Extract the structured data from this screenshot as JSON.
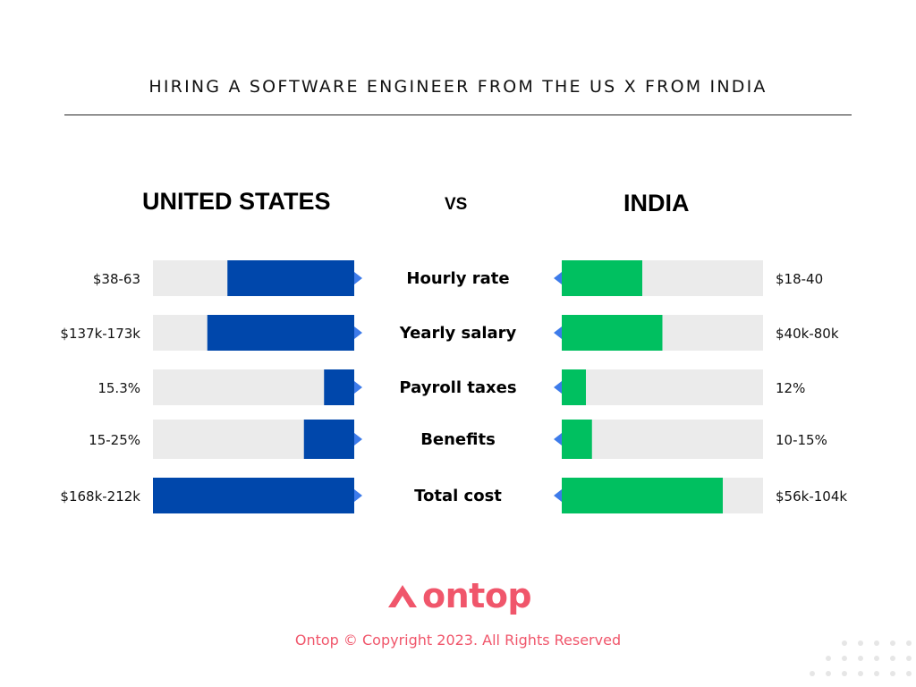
{
  "title": "HIRING A SOFTWARE ENGINEER FROM THE US X FROM INDIA",
  "left_heading": "UNITED STATES",
  "vs_label": "VS",
  "right_heading": "INDIA",
  "chart_data": {
    "type": "bar",
    "categories": [
      "Hourly rate",
      "Yearly salary",
      "Payroll taxes",
      "Benefits",
      "Total cost"
    ],
    "left": {
      "labels": [
        "$38-63",
        "$137k-173k",
        "15.3%",
        "15-25%",
        "$168k-212k"
      ],
      "fill": [
        0.63,
        0.73,
        0.15,
        0.25,
        1.0
      ],
      "color": "#0047ab"
    },
    "right": {
      "labels": [
        "$18-40",
        "$40k-80k",
        "12%",
        "10-15%",
        "$56k-104k"
      ],
      "fill": [
        0.4,
        0.5,
        0.12,
        0.15,
        0.8
      ],
      "color": "#00c060"
    },
    "track_color": "#ebebeb",
    "arrow_color": "#3d7bea"
  },
  "brand": {
    "name": "ontop",
    "color": "#f0566b"
  },
  "copyright": "Ontop © Copyright 2023. All Rights Reserved"
}
